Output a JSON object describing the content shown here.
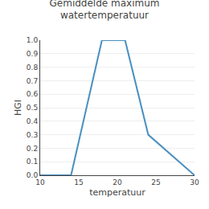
{
  "chart_data": {
    "type": "line",
    "title": "Gemiddelde maximum\nwatertemperatuur",
    "x_label": "temperatuur",
    "y_label": "HGI",
    "x": [
      10,
      14,
      18,
      21,
      24,
      30
    ],
    "values": [
      0.0,
      0.0,
      1.0,
      1.0,
      0.3,
      0.0
    ],
    "color": "#4a8fc0",
    "xlim": [
      10,
      30
    ],
    "ylim": [
      0.0,
      1.0
    ],
    "xticks": [
      10,
      15,
      20,
      25,
      30
    ],
    "yticks": [
      {
        "value": 0.0,
        "label": "0.0"
      },
      0.1,
      0.2,
      0.3,
      0.4,
      0.5,
      0.6,
      0.7,
      0.8,
      0.9,
      {
        "value": 1.0,
        "label": "1.0"
      }
    ],
    "grid": "y"
  }
}
